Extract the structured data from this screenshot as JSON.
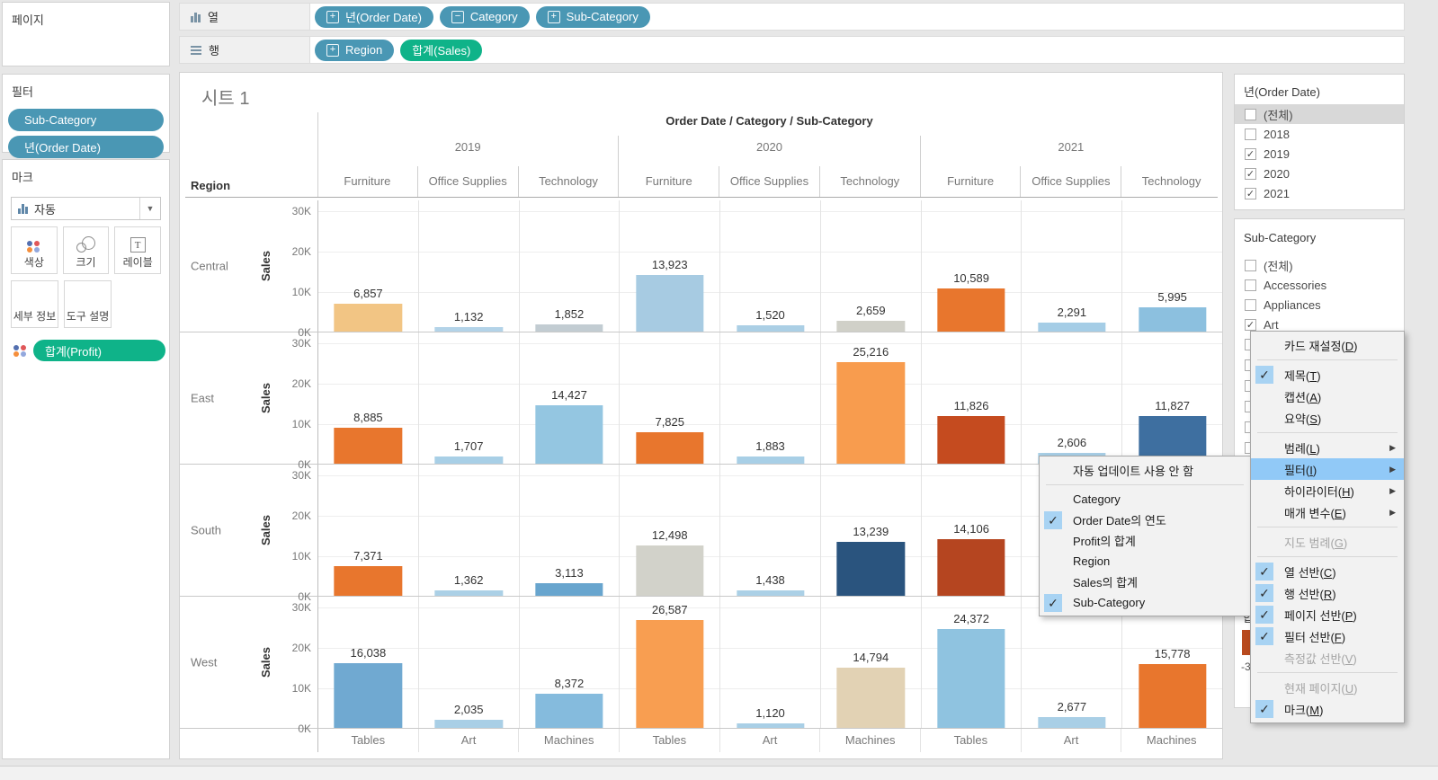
{
  "pages_card": {
    "title": "페이지"
  },
  "shelves": {
    "columns": {
      "label": "열",
      "pills": [
        {
          "text": "년(Order Date)",
          "icon": "plus"
        },
        {
          "text": "Category",
          "icon": "minus"
        },
        {
          "text": "Sub-Category",
          "icon": "plus"
        }
      ]
    },
    "rows": {
      "label": "행",
      "pills": [
        {
          "text": "Region",
          "icon": "plus"
        },
        {
          "text": "합계(Sales)",
          "type": "measure"
        }
      ]
    }
  },
  "filters_card": {
    "title": "필터",
    "pills": [
      {
        "text": "Sub-Category"
      },
      {
        "text": "년(Order Date)"
      }
    ]
  },
  "marks_card": {
    "title": "마크",
    "mark_type": {
      "label": "자동"
    },
    "buttons": [
      {
        "label": "색상",
        "icon": "color-dots"
      },
      {
        "label": "크기",
        "icon": "size-circles"
      },
      {
        "label": "레이블",
        "icon": "label-T"
      },
      {
        "label": "세부 정보"
      },
      {
        "label": "도구 설명"
      }
    ],
    "encoding_pill": {
      "text": "합계(Profit)",
      "icon": "color-dots"
    }
  },
  "chart_data": {
    "type": "bar",
    "sheet_title": "시트 1",
    "column_fields_header": "Order Date / Category / Sub-Category",
    "row_field_header": "Region",
    "years": [
      "2019",
      "2020",
      "2021"
    ],
    "categories_per_year": [
      "Furniture",
      "Office Supplies",
      "Technology"
    ],
    "x_tick_labels": [
      "Tables",
      "Art",
      "Machines",
      "Tables",
      "Art",
      "Machines",
      "Tables",
      "Art",
      "Machines"
    ],
    "y_axis_label": "Sales",
    "y_ticks": [
      "30K",
      "20K",
      "10K",
      "0K"
    ],
    "y_max": 30000,
    "grid": true,
    "note": "South 2021 Office Supplies and Technology bars are hidden behind the open submenu",
    "regions": [
      {
        "name": "Central",
        "values": [
          6857,
          1132,
          1852,
          13923,
          1520,
          2659,
          10589,
          2291,
          5995
        ],
        "labels": [
          "6,857",
          "1,132",
          "1,852",
          "13,923",
          "1,520",
          "2,659",
          "10,589",
          "2,291",
          "5,995"
        ],
        "colors": [
          "#f2c584",
          "#b3d3e8",
          "#c2ccd2",
          "#a7cbe2",
          "#abcfe5",
          "#d0d0c8",
          "#e8762d",
          "#a5cde6",
          "#8cc0df"
        ]
      },
      {
        "name": "East",
        "values": [
          8885,
          1707,
          14427,
          7825,
          1883,
          25216,
          11826,
          2606,
          11827
        ],
        "labels": [
          "8,885",
          "1,707",
          "14,427",
          "7,825",
          "1,883",
          "25,216",
          "11,826",
          "2,606",
          "11,827"
        ],
        "colors": [
          "#e8762d",
          "#a8cfe6",
          "#94c6e1",
          "#e8762d",
          "#a8cfe6",
          "#f89c4e",
          "#c54b1f",
          "#a8cfe6",
          "#3e6fa0"
        ]
      },
      {
        "name": "South",
        "values": [
          7371,
          1362,
          3113,
          12498,
          1438,
          13239,
          14106,
          null,
          null
        ],
        "labels": [
          "7,371",
          "1,362",
          "3,113",
          "12,498",
          "1,438",
          "13,239",
          "14,106",
          null,
          null
        ],
        "colors": [
          "#e8762d",
          "#abd0e6",
          "#68a5ce",
          "#d2d2ca",
          "#abd0e6",
          "#2a547e",
          "#b54520",
          null,
          null
        ]
      },
      {
        "name": "West",
        "values": [
          16038,
          2035,
          8372,
          26587,
          1120,
          14794,
          24372,
          2677,
          15778
        ],
        "labels": [
          "16,038",
          "2,035",
          "8,372",
          "26,587",
          "1,120",
          "14,794",
          "24,372",
          "2,677",
          "15,778"
        ],
        "colors": [
          "#70a9d1",
          "#a9cfe6",
          "#85bbdd",
          "#f89e51",
          "#a9cfe6",
          "#e2d2b4",
          "#8fc3e0",
          "#a9cfe6",
          "#e8762d"
        ]
      }
    ]
  },
  "order_date_filter": {
    "title": "년(Order Date)",
    "items": [
      {
        "label": "(전체)",
        "checked": false,
        "highlight": true
      },
      {
        "label": "2018",
        "checked": false
      },
      {
        "label": "2019",
        "checked": true
      },
      {
        "label": "2020",
        "checked": true
      },
      {
        "label": "2021",
        "checked": true
      }
    ]
  },
  "sub_category_filter": {
    "title": "Sub-Category",
    "items": [
      {
        "label": "(전체)",
        "checked": false
      },
      {
        "label": "Accessories",
        "checked": false
      },
      {
        "label": "Appliances",
        "checked": false
      },
      {
        "label": "Art",
        "checked": true
      }
    ],
    "partial_checkbox_rows": 6
  },
  "profit_legend": {
    "title_visible": "합",
    "swatch_color": "#b84a1e",
    "value_visible": "-3"
  },
  "context_menu": {
    "items": [
      {
        "label": "카드 재설정(D)"
      },
      {
        "sep": true
      },
      {
        "label": "제목(T)",
        "checked": true
      },
      {
        "label": "캡션(A)"
      },
      {
        "label": "요약(S)"
      },
      {
        "sep": true
      },
      {
        "label": "범례(L)",
        "arrow": true
      },
      {
        "label": "필터(I)",
        "arrow": true,
        "highlighted": true
      },
      {
        "label": "하이라이터(H)",
        "arrow": true
      },
      {
        "label": "매개 변수(E)",
        "arrow": true
      },
      {
        "sep": true
      },
      {
        "label": "지도 범례(G)",
        "disabled": true
      },
      {
        "sep": true
      },
      {
        "label": "열 선반(C)",
        "checked": true
      },
      {
        "label": "행 선반(R)",
        "checked": true
      },
      {
        "label": "페이지 선반(P)",
        "checked": true
      },
      {
        "label": "필터 선반(F)",
        "checked": true
      },
      {
        "label": "측정값 선반(V)",
        "disabled": true
      },
      {
        "sep": true
      },
      {
        "label": "현재 페이지(U)",
        "disabled": true
      },
      {
        "label": "마크(M)",
        "checked": true
      }
    ]
  },
  "submenu": {
    "items": [
      {
        "label": "자동 업데이트 사용 안 함"
      },
      {
        "sep": true
      },
      {
        "label": "Category"
      },
      {
        "label": "Order Date의 연도",
        "checked": true
      },
      {
        "label": "Profit의 합계"
      },
      {
        "label": "Region"
      },
      {
        "label": "Sales의 합계"
      },
      {
        "label": "Sub-Category",
        "checked": true
      }
    ]
  },
  "colors": {
    "dimension_pill": "#4a97b4",
    "measure_pill": "#0fb389",
    "menu_highlight": "#91c9f7",
    "menu_check_bg": "#a8d3f3",
    "color_dots": [
      "#5470b0",
      "#e05759",
      "#f58f3c",
      "#93a8dd"
    ]
  }
}
